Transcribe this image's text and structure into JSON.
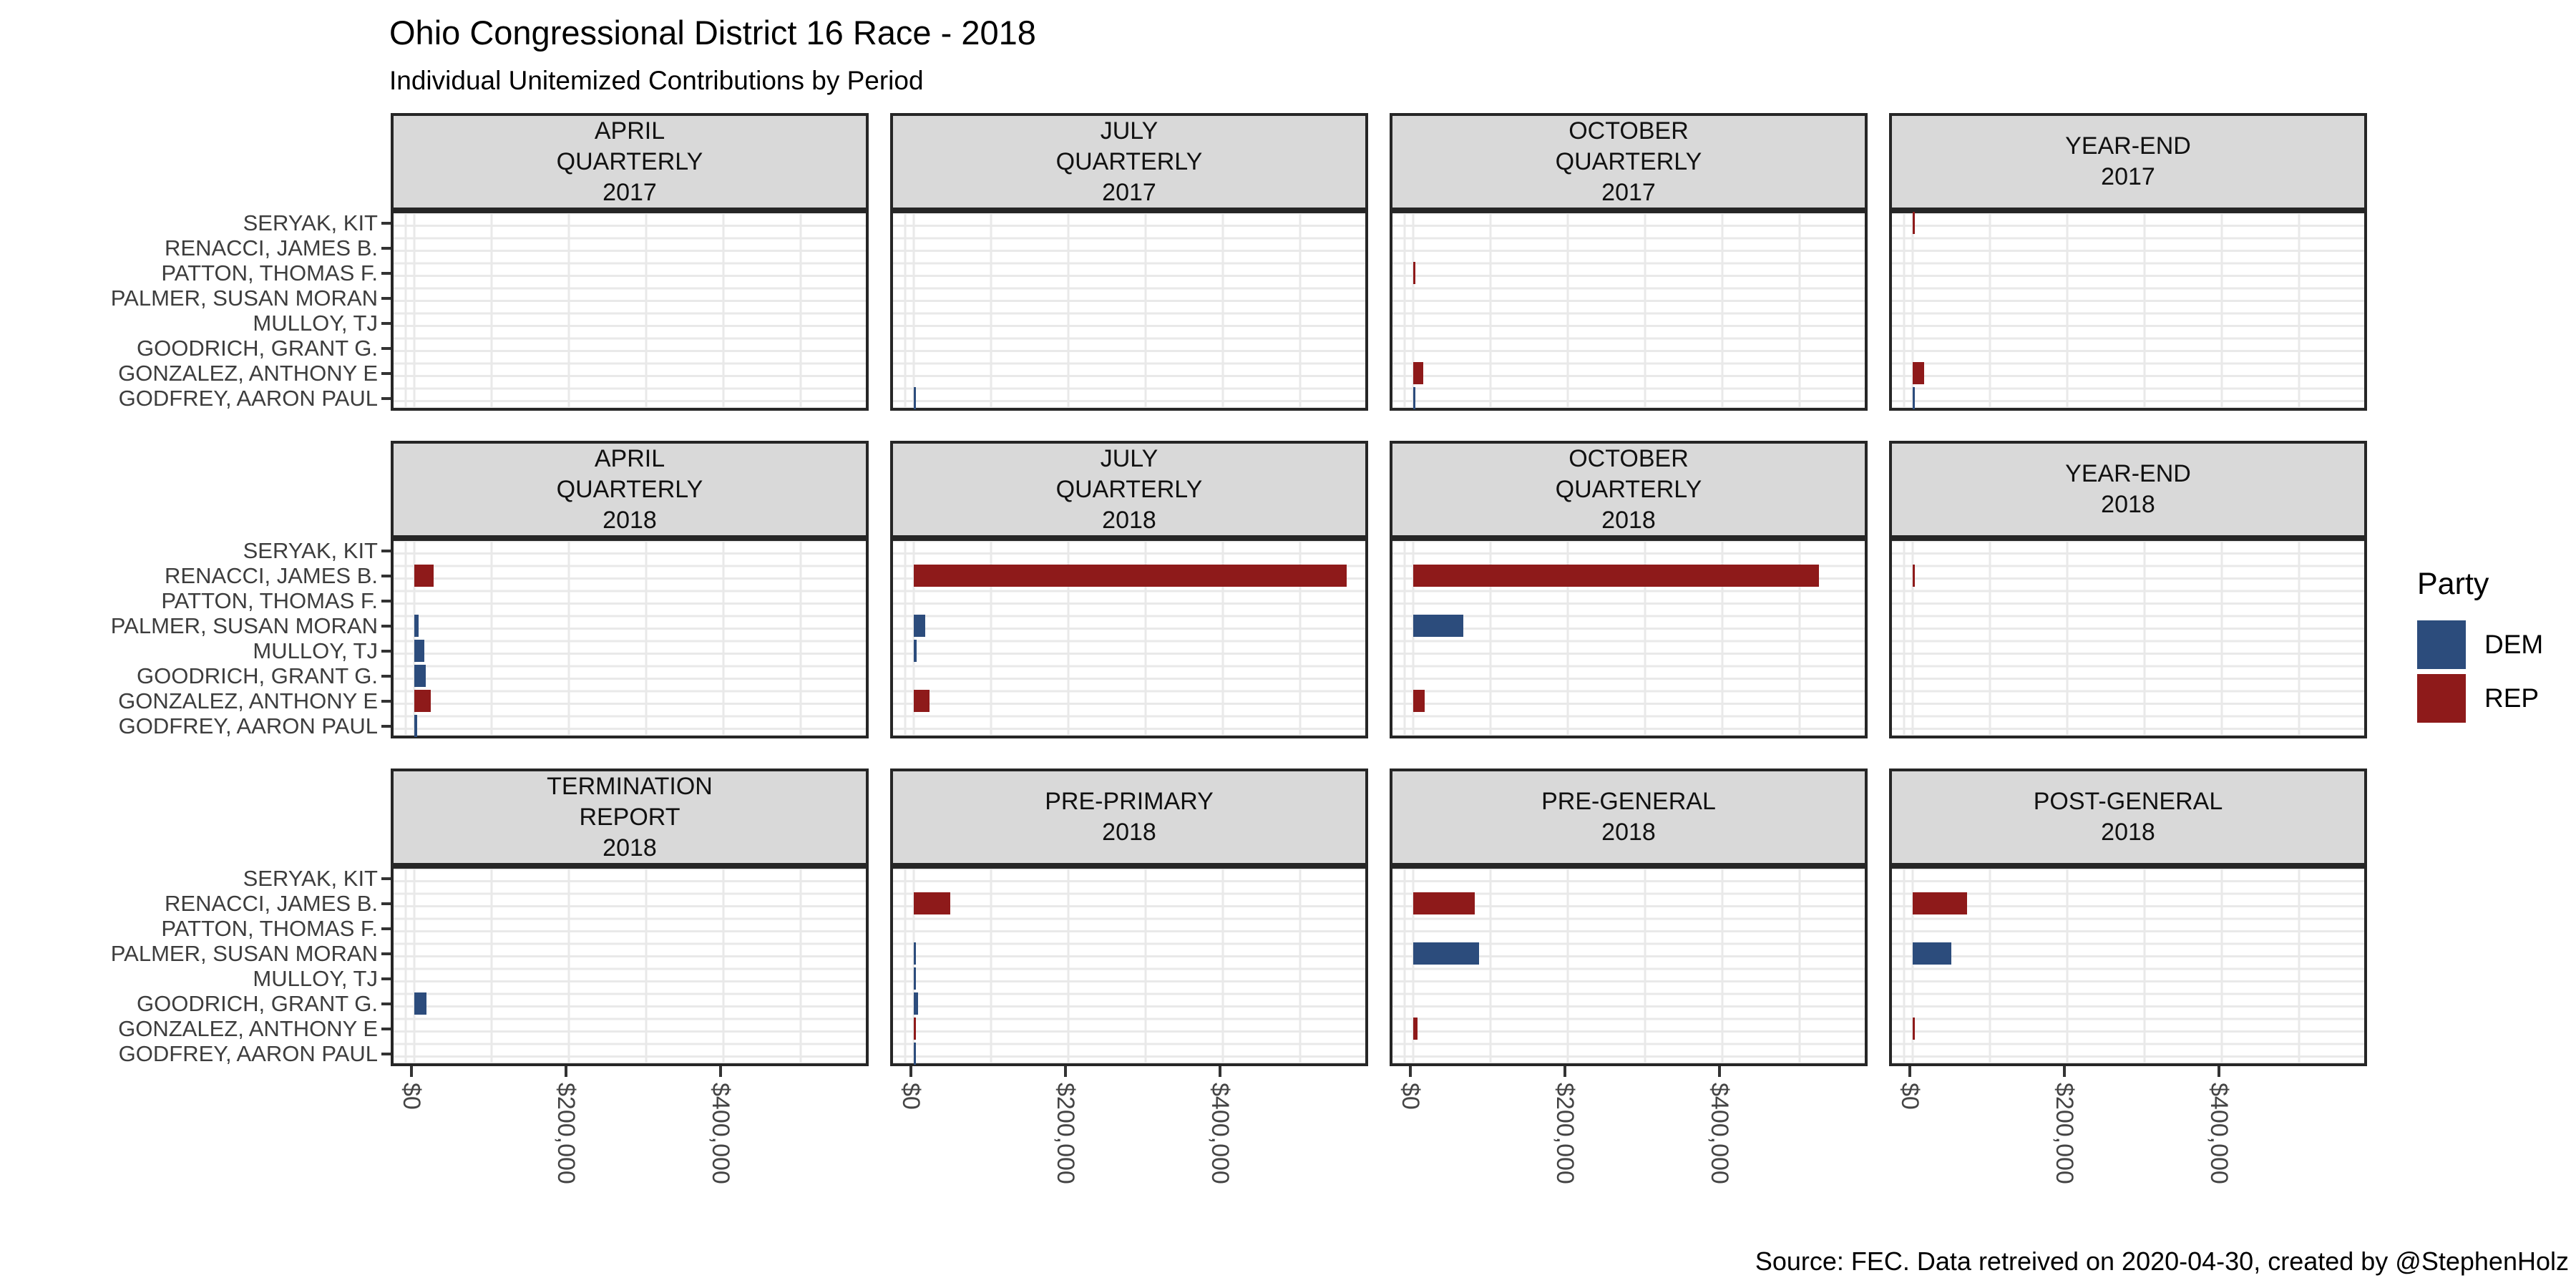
{
  "chart_data": {
    "type": "bar",
    "orientation": "horizontal",
    "title": "Ohio Congressional District 16 Race - 2018",
    "subtitle": "Individual Unitemized Contributions by Period",
    "caption": "Source: FEC. Data retreived on 2020-04-30, created by @StephenHolz",
    "grid": "on",
    "candidates_top_to_bottom": [
      "SERYAK, KIT",
      "RENACCI, JAMES B.",
      "PATTON, THOMAS F.",
      "PALMER, SUSAN MORAN",
      "MULLOY, TJ",
      "GOODRICH, GRANT G.",
      "GONZALEZ, ANTHONY E",
      "GODFREY, AARON PAUL"
    ],
    "x_ticks": [
      {
        "label": "$0",
        "value": 0
      },
      {
        "label": "$200,000",
        "value": 200000
      },
      {
        "label": "$400,000",
        "value": 400000
      }
    ],
    "x_axis_max_usd": 590000,
    "legend": {
      "title": "Party",
      "position": "right",
      "entries": [
        {
          "label": "DEM",
          "color": "#2C4C7C"
        },
        {
          "label": "REP",
          "color": "#8E1A1A"
        }
      ]
    },
    "facet_rows": [
      [
        {
          "strip_lines": [
            "APRIL",
            "QUARTERLY",
            "2017"
          ],
          "bars": []
        },
        {
          "strip_lines": [
            "JULY",
            "QUARTERLY",
            "2017"
          ],
          "bars": [
            {
              "candidate": "GODFREY, AARON PAUL",
              "party": "DEM",
              "value_usd_est": 2500
            }
          ]
        },
        {
          "strip_lines": [
            "OCTOBER",
            "QUARTERLY",
            "2017"
          ],
          "bars": [
            {
              "candidate": "PATTON, THOMAS F.",
              "party": "REP",
              "value_usd_est": 1000
            },
            {
              "candidate": "GONZALEZ, ANTHONY E",
              "party": "REP",
              "value_usd_est": 13000
            },
            {
              "candidate": "GODFREY, AARON PAUL",
              "party": "DEM",
              "value_usd_est": 1000
            }
          ]
        },
        {
          "strip_lines": [
            "YEAR-END",
            "2017"
          ],
          "bars": [
            {
              "candidate": "SERYAK, KIT",
              "party": "REP",
              "value_usd_est": 1000
            },
            {
              "candidate": "GONZALEZ, ANTHONY E",
              "party": "REP",
              "value_usd_est": 15000
            },
            {
              "candidate": "GODFREY, AARON PAUL",
              "party": "DEM",
              "value_usd_est": 1000
            }
          ]
        }
      ],
      [
        {
          "strip_lines": [
            "APRIL",
            "QUARTERLY",
            "2018"
          ],
          "bars": [
            {
              "candidate": "RENACCI, JAMES B.",
              "party": "REP",
              "value_usd_est": 25000
            },
            {
              "candidate": "PALMER, SUSAN MORAN",
              "party": "DEM",
              "value_usd_est": 6000
            },
            {
              "candidate": "MULLOY, TJ",
              "party": "DEM",
              "value_usd_est": 13000
            },
            {
              "candidate": "GOODRICH, GRANT G.",
              "party": "DEM",
              "value_usd_est": 15000
            },
            {
              "candidate": "GONZALEZ, ANTHONY E",
              "party": "REP",
              "value_usd_est": 21000
            },
            {
              "candidate": "GODFREY, AARON PAUL",
              "party": "DEM",
              "value_usd_est": 4000
            }
          ]
        },
        {
          "strip_lines": [
            "JULY",
            "QUARTERLY",
            "2018"
          ],
          "bars": [
            {
              "candidate": "RENACCI, JAMES B.",
              "party": "REP",
              "value_usd_est": 560000
            },
            {
              "candidate": "PALMER, SUSAN MORAN",
              "party": "DEM",
              "value_usd_est": 15000
            },
            {
              "candidate": "MULLOY, TJ",
              "party": "DEM",
              "value_usd_est": 4000
            },
            {
              "candidate": "GONZALEZ, ANTHONY E",
              "party": "REP",
              "value_usd_est": 20000
            }
          ]
        },
        {
          "strip_lines": [
            "OCTOBER",
            "QUARTERLY",
            "2018"
          ],
          "bars": [
            {
              "candidate": "RENACCI, JAMES B.",
              "party": "REP",
              "value_usd_est": 525000
            },
            {
              "candidate": "PALMER, SUSAN MORAN",
              "party": "DEM",
              "value_usd_est": 65000
            },
            {
              "candidate": "GONZALEZ, ANTHONY E",
              "party": "REP",
              "value_usd_est": 15000
            }
          ]
        },
        {
          "strip_lines": [
            "YEAR-END",
            "2018"
          ],
          "bars": [
            {
              "candidate": "RENACCI, JAMES B.",
              "party": "REP",
              "value_usd_est": 1500
            }
          ]
        }
      ],
      [
        {
          "strip_lines": [
            "TERMINATION",
            "REPORT",
            "2018"
          ],
          "bars": [
            {
              "candidate": "GOODRICH, GRANT G.",
              "party": "DEM",
              "value_usd_est": 16000
            }
          ]
        },
        {
          "strip_lines": [
            "PRE-PRIMARY",
            "2018"
          ],
          "bars": [
            {
              "candidate": "RENACCI, JAMES B.",
              "party": "REP",
              "value_usd_est": 47000
            },
            {
              "candidate": "PALMER, SUSAN MORAN",
              "party": "DEM",
              "value_usd_est": 2000
            },
            {
              "candidate": "MULLOY, TJ",
              "party": "DEM",
              "value_usd_est": 1000
            },
            {
              "candidate": "GOODRICH, GRANT G.",
              "party": "DEM",
              "value_usd_est": 6000
            },
            {
              "candidate": "GONZALEZ, ANTHONY E",
              "party": "REP",
              "value_usd_est": 2000
            },
            {
              "candidate": "GODFREY, AARON PAUL",
              "party": "DEM",
              "value_usd_est": 1000
            }
          ]
        },
        {
          "strip_lines": [
            "PRE-GENERAL",
            "2018"
          ],
          "bars": [
            {
              "candidate": "RENACCI, JAMES B.",
              "party": "REP",
              "value_usd_est": 80000
            },
            {
              "candidate": "PALMER, SUSAN MORAN",
              "party": "DEM",
              "value_usd_est": 85000
            },
            {
              "candidate": "GONZALEZ, ANTHONY E",
              "party": "REP",
              "value_usd_est": 6000
            }
          ]
        },
        {
          "strip_lines": [
            "POST-GENERAL",
            "2018"
          ],
          "bars": [
            {
              "candidate": "RENACCI, JAMES B.",
              "party": "REP",
              "value_usd_est": 70000
            },
            {
              "candidate": "PALMER, SUSAN MORAN",
              "party": "DEM",
              "value_usd_est": 50000
            },
            {
              "candidate": "GONZALEZ, ANTHONY E",
              "party": "REP",
              "value_usd_est": 1500
            }
          ]
        }
      ]
    ]
  }
}
